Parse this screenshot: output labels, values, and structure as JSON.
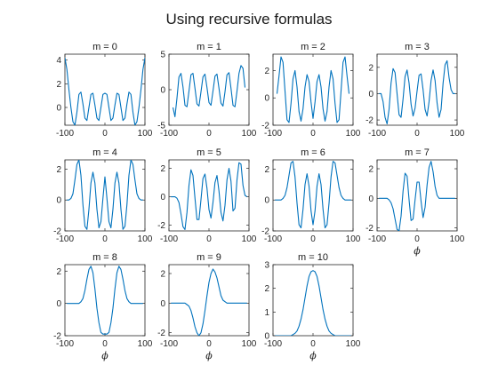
{
  "figure": {
    "title": "Using recursive formulas",
    "line_color": "#0072BD"
  },
  "chart_data": [
    {
      "type": "line",
      "title": "m = 0",
      "xlabel": "",
      "xlim": [
        -100,
        100
      ],
      "ylim": [
        -1.5,
        4.5
      ],
      "xticks": [
        -100,
        0,
        100
      ],
      "yticks": [
        0,
        2,
        4
      ],
      "x": [
        -100,
        -95,
        -90,
        -85,
        -80,
        -75,
        -70,
        -65,
        -60,
        -55,
        -50,
        -45,
        -40,
        -35,
        -30,
        -25,
        -20,
        -15,
        -10,
        -5,
        0,
        5,
        10,
        15,
        20,
        25,
        30,
        35,
        40,
        45,
        50,
        55,
        60,
        65,
        70,
        75,
        80,
        85,
        90,
        95,
        100
      ],
      "y": [
        4.2,
        3.2,
        1.5,
        0,
        -1.2,
        -1.5,
        -0.4,
        1.1,
        1.3,
        0.3,
        -0.9,
        -1.1,
        0,
        1.1,
        1.2,
        0.2,
        -0.9,
        -1.1,
        0,
        1.1,
        1.2,
        1.1,
        0,
        -1.1,
        -0.9,
        0.2,
        1.2,
        1.1,
        0,
        -1.1,
        -0.9,
        0.3,
        1.3,
        1.1,
        -0.4,
        -1.5,
        -1.2,
        0,
        1.5,
        3.2,
        4.2
      ]
    },
    {
      "type": "line",
      "title": "m = 1",
      "xlabel": "",
      "xlim": [
        -100,
        100
      ],
      "ylim": [
        -5,
        5
      ],
      "xticks": [
        -100,
        0,
        100
      ],
      "yticks": [
        -5,
        0,
        5
      ],
      "x": [
        -90,
        -85,
        -80,
        -75,
        -70,
        -65,
        -60,
        -55,
        -50,
        -45,
        -40,
        -35,
        -30,
        -25,
        -20,
        -15,
        -10,
        -5,
        0,
        5,
        10,
        15,
        20,
        25,
        30,
        35,
        40,
        45,
        50,
        55,
        60,
        65,
        70,
        75,
        80,
        85,
        90
      ],
      "y": [
        -2.5,
        -3.8,
        -1.2,
        1.8,
        2.3,
        0.4,
        -2.2,
        -2.4,
        -0.2,
        2.1,
        2.3,
        0.2,
        -2,
        -2.3,
        -0.3,
        1.8,
        2.2,
        0.3,
        -1.8,
        -2.2,
        -0.2,
        1.9,
        2.2,
        0.2,
        -1.9,
        -2.3,
        -0.3,
        2.1,
        2.4,
        0.2,
        -2.2,
        -2.4,
        -0.2,
        2.3,
        3.4,
        3,
        0.3
      ]
    },
    {
      "type": "line",
      "title": "m = 2",
      "xlabel": "",
      "xlim": [
        -100,
        100
      ],
      "ylim": [
        -2,
        3.2
      ],
      "xticks": [
        -100,
        0,
        100
      ],
      "yticks": [
        -2,
        0,
        2
      ],
      "x": [
        -90,
        -85,
        -80,
        -75,
        -70,
        -65,
        -60,
        -55,
        -50,
        -45,
        -40,
        -35,
        -30,
        -25,
        -20,
        -15,
        -10,
        -5,
        0,
        5,
        10,
        15,
        20,
        25,
        30,
        35,
        40,
        45,
        50,
        55,
        60,
        65,
        70,
        75,
        80,
        85,
        90
      ],
      "y": [
        0.3,
        1.6,
        3,
        2.6,
        0.5,
        -1.6,
        -1.8,
        -0.4,
        1.4,
        2,
        0.8,
        -1,
        -1.7,
        -0.8,
        0.8,
        1.7,
        1.2,
        -0.3,
        -1.5,
        -0.3,
        1.2,
        1.7,
        0.8,
        -0.8,
        -1.7,
        -1,
        0.8,
        2,
        1.4,
        -0.4,
        -1.8,
        -1.6,
        0.5,
        2.6,
        3,
        1.6,
        0.3
      ]
    },
    {
      "type": "line",
      "title": "m = 3",
      "xlabel": "",
      "xlim": [
        -100,
        100
      ],
      "ylim": [
        -2.4,
        3
      ],
      "xticks": [
        -100,
        0,
        100
      ],
      "yticks": [
        -2,
        0,
        2
      ],
      "x": [
        -95,
        -90,
        -85,
        -80,
        -75,
        -70,
        -65,
        -60,
        -55,
        -50,
        -45,
        -40,
        -35,
        -30,
        -25,
        -20,
        -15,
        -10,
        -5,
        0,
        5,
        10,
        15,
        20,
        25,
        30,
        35,
        40,
        45,
        50,
        55,
        60,
        65,
        70,
        75,
        80,
        85,
        90,
        95
      ],
      "y": [
        0,
        0,
        -0.6,
        -1.8,
        -2.3,
        -1.2,
        0.8,
        1.9,
        1.6,
        0,
        -1.6,
        -1.8,
        -0.4,
        1.3,
        1.8,
        0.8,
        -0.8,
        -1.7,
        -1.1,
        0.2,
        1.4,
        1.5,
        0.3,
        -1.2,
        -1.7,
        -0.6,
        1,
        1.8,
        1,
        -0.7,
        -1.8,
        -1.2,
        0.8,
        2.2,
        2.5,
        1.2,
        0.3,
        0,
        0
      ]
    },
    {
      "type": "line",
      "title": "m = 4",
      "xlabel": "",
      "xlim": [
        -100,
        100
      ],
      "ylim": [
        -2,
        2.6
      ],
      "xticks": [
        -100,
        0,
        100
      ],
      "yticks": [
        -2,
        0,
        2
      ],
      "x": [
        -95,
        -90,
        -85,
        -80,
        -75,
        -70,
        -65,
        -60,
        -55,
        -50,
        -45,
        -40,
        -35,
        -30,
        -25,
        -20,
        -15,
        -10,
        -5,
        0,
        5,
        10,
        15,
        20,
        25,
        30,
        35,
        40,
        45,
        50,
        55,
        60,
        65,
        70,
        75,
        80,
        85,
        90,
        95
      ],
      "y": [
        0,
        0,
        0.1,
        0.4,
        1.3,
        2.3,
        2.6,
        1.6,
        -0.3,
        -1.7,
        -1.9,
        -0.6,
        1.1,
        1.8,
        1.1,
        -0.6,
        -1.8,
        -1.4,
        0.1,
        1.5,
        0.1,
        -1.4,
        -1.8,
        -0.6,
        1.1,
        1.8,
        1.1,
        -0.6,
        -1.9,
        -1.7,
        -0.3,
        1.6,
        2.6,
        2.3,
        1.3,
        0.4,
        0.1,
        0,
        0
      ]
    },
    {
      "type": "line",
      "title": "m = 5",
      "xlabel": "",
      "xlim": [
        -100,
        100
      ],
      "ylim": [
        -2.4,
        2.6
      ],
      "xticks": [
        -100,
        0,
        100
      ],
      "yticks": [
        -2,
        0,
        2
      ],
      "x": [
        -95,
        -90,
        -85,
        -80,
        -75,
        -70,
        -65,
        -60,
        -55,
        -50,
        -45,
        -40,
        -35,
        -30,
        -25,
        -20,
        -15,
        -10,
        -5,
        0,
        5,
        10,
        15,
        20,
        25,
        30,
        35,
        40,
        45,
        50,
        55,
        60,
        65,
        70,
        75,
        80,
        85,
        90,
        95
      ],
      "y": [
        0,
        0,
        0,
        -0.1,
        -0.4,
        -1.2,
        -2.1,
        -2.3,
        -1.1,
        0.8,
        1.9,
        1.5,
        -0.1,
        -1.6,
        -1.6,
        -0.2,
        1.3,
        1.6,
        0.6,
        -0.9,
        -1.5,
        -0.4,
        1,
        1.5,
        0.4,
        -1.1,
        -1.7,
        -0.6,
        1.2,
        2,
        1.1,
        -1,
        -0.8,
        1.2,
        2.4,
        2.3,
        0.8,
        0.1,
        0
      ]
    },
    {
      "type": "line",
      "title": "m = 6",
      "xlabel": "",
      "xlim": [
        -100,
        100
      ],
      "ylim": [
        -2,
        2.6
      ],
      "xticks": [
        -100,
        0,
        100
      ],
      "yticks": [
        -2,
        0,
        2
      ],
      "x": [
        -95,
        -90,
        -85,
        -80,
        -75,
        -70,
        -65,
        -60,
        -55,
        -50,
        -45,
        -40,
        -35,
        -30,
        -25,
        -20,
        -15,
        -10,
        -5,
        0,
        5,
        10,
        15,
        20,
        25,
        30,
        35,
        40,
        45,
        50,
        55,
        60,
        65,
        70,
        75,
        80,
        85,
        90,
        95
      ],
      "y": [
        0,
        0,
        0,
        0,
        0.1,
        0.3,
        0.8,
        1.6,
        2.4,
        2.5,
        1.5,
        -0.2,
        -1.6,
        -1.8,
        -0.6,
        1,
        1.7,
        0.9,
        -0.7,
        -1.6,
        -0.7,
        0.9,
        1.7,
        1,
        -0.6,
        -1.8,
        -1.6,
        -0.2,
        1.5,
        2.5,
        2.4,
        1.6,
        0.8,
        0.3,
        0.1,
        0,
        0,
        0,
        0
      ]
    },
    {
      "type": "line",
      "title": "m = 7",
      "xlabel": "ϕ",
      "xlim": [
        -100,
        100
      ],
      "ylim": [
        -2.2,
        2.6
      ],
      "xticks": [
        -100,
        0,
        100
      ],
      "yticks": [
        -2,
        0,
        2
      ],
      "x": [
        -95,
        -90,
        -85,
        -80,
        -75,
        -70,
        -65,
        -60,
        -55,
        -50,
        -45,
        -40,
        -35,
        -30,
        -25,
        -20,
        -15,
        -10,
        -5,
        0,
        5,
        10,
        15,
        20,
        25,
        30,
        35,
        40,
        45,
        50,
        55,
        60,
        65,
        70,
        75,
        80,
        85,
        90,
        95
      ],
      "y": [
        0,
        0,
        0,
        0,
        0,
        -0.1,
        -0.3,
        -0.7,
        -1.4,
        -2.1,
        -2.2,
        -1.2,
        0.5,
        1.7,
        1.5,
        -0.1,
        -1.5,
        -1.4,
        -0.1,
        1.1,
        1.1,
        -0.2,
        -1.3,
        -0.6,
        0.9,
        2.1,
        2.5,
        1.8,
        0.8,
        0.2,
        0,
        0,
        0,
        0,
        0,
        0,
        0,
        0,
        0
      ]
    },
    {
      "type": "line",
      "title": "m = 8",
      "xlabel": "ϕ",
      "xlim": [
        -100,
        100
      ],
      "ylim": [
        -2,
        2.4
      ],
      "xticks": [
        -100,
        0,
        100
      ],
      "yticks": [
        -2,
        0,
        2
      ],
      "x": [
        -95,
        -90,
        -85,
        -80,
        -75,
        -70,
        -65,
        -60,
        -55,
        -50,
        -45,
        -40,
        -35,
        -30,
        -25,
        -20,
        -15,
        -10,
        -5,
        0,
        5,
        10,
        15,
        20,
        25,
        30,
        35,
        40,
        45,
        50,
        55,
        60,
        65,
        70,
        75,
        80,
        85,
        90,
        95
      ],
      "y": [
        0,
        0,
        0,
        0,
        0,
        0,
        0,
        0.1,
        0.3,
        0.8,
        1.5,
        2.1,
        2.3,
        1.9,
        0.9,
        -0.3,
        -1.2,
        -1.8,
        -1.9,
        -1.9,
        -1.9,
        -1.8,
        -1.2,
        -0.3,
        0.9,
        1.9,
        2.3,
        2.1,
        1.5,
        0.8,
        0.3,
        0.1,
        0,
        0,
        0,
        0,
        0,
        0,
        0
      ]
    },
    {
      "type": "line",
      "title": "m = 9",
      "xlabel": "ϕ",
      "xlim": [
        -100,
        100
      ],
      "ylim": [
        -2.2,
        2.6
      ],
      "xticks": [
        -100,
        0,
        100
      ],
      "yticks": [
        -2,
        0,
        2
      ],
      "x": [
        -95,
        -90,
        -85,
        -80,
        -75,
        -70,
        -65,
        -60,
        -55,
        -50,
        -45,
        -40,
        -35,
        -30,
        -25,
        -20,
        -15,
        -10,
        -5,
        0,
        5,
        10,
        15,
        20,
        25,
        30,
        35,
        40,
        45,
        50,
        55,
        60,
        65,
        70,
        75,
        80,
        85,
        90,
        95
      ],
      "y": [
        0,
        0,
        0,
        0,
        0,
        0,
        0,
        0,
        -0.1,
        -0.2,
        -0.5,
        -1,
        -1.6,
        -2,
        -2.2,
        -2,
        -1.4,
        -0.5,
        0.5,
        1.4,
        2,
        2.3,
        2.1,
        1.7,
        1.1,
        0.5,
        0.2,
        0.1,
        0,
        0,
        0,
        0,
        0,
        0,
        0,
        0,
        0,
        0,
        0
      ]
    },
    {
      "type": "line",
      "title": "m = 10",
      "xlabel": "ϕ",
      "xlim": [
        -100,
        100
      ],
      "ylim": [
        0,
        3
      ],
      "xticks": [
        -100,
        0,
        100
      ],
      "yticks": [
        0,
        1,
        2,
        3
      ],
      "x": [
        -95,
        -90,
        -85,
        -80,
        -75,
        -70,
        -65,
        -60,
        -55,
        -50,
        -45,
        -40,
        -35,
        -30,
        -25,
        -20,
        -15,
        -10,
        -5,
        0,
        5,
        10,
        15,
        20,
        25,
        30,
        35,
        40,
        45,
        50,
        55,
        60,
        65,
        70,
        75,
        80,
        85,
        90,
        95
      ],
      "y": [
        0,
        0,
        0,
        0,
        0,
        0,
        0,
        0,
        0,
        0.05,
        0.1,
        0.2,
        0.4,
        0.7,
        1.1,
        1.6,
        2.1,
        2.5,
        2.7,
        2.75,
        2.7,
        2.5,
        2.1,
        1.6,
        1.1,
        0.7,
        0.4,
        0.2,
        0.1,
        0.05,
        0,
        0,
        0,
        0,
        0,
        0,
        0,
        0,
        0
      ]
    }
  ]
}
